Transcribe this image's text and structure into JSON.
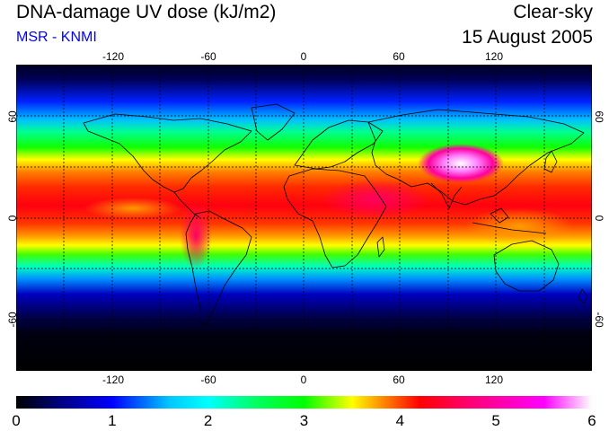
{
  "header": {
    "title": "DNA-damage UV dose (kJ/m2)",
    "source": "MSR - KNMI",
    "sky": "Clear-sky",
    "date": "15 August 2005"
  },
  "map": {
    "projection": "equirectangular",
    "lon_range": [
      -180,
      180
    ],
    "lat_range": [
      -90,
      90
    ],
    "lon_tick_labels": [
      "-120",
      "-60",
      "0",
      "60",
      "120"
    ],
    "lat_tick_labels_left": [
      "60",
      "0",
      "-60"
    ],
    "lat_tick_labels_right": [
      "60",
      "0",
      "-60"
    ],
    "gridlines": "dotted every 30 degrees",
    "coastlines": true,
    "field_description_note_excluded": true
  },
  "colorbar": {
    "labels": [
      "0",
      "1",
      "2",
      "3",
      "4",
      "5",
      "6"
    ],
    "range": [
      0,
      6
    ],
    "stops": [
      {
        "value": 0.0,
        "color": "#000000"
      },
      {
        "value": 0.5,
        "color": "#00008b"
      },
      {
        "value": 1.0,
        "color": "#0000ff"
      },
      {
        "value": 1.6,
        "color": "#00c8ff"
      },
      {
        "value": 2.0,
        "color": "#00ffff"
      },
      {
        "value": 2.5,
        "color": "#00ff60"
      },
      {
        "value": 3.0,
        "color": "#00ff00"
      },
      {
        "value": 3.5,
        "color": "#ffff00"
      },
      {
        "value": 3.8,
        "color": "#ff9000"
      },
      {
        "value": 4.2,
        "color": "#ff0000"
      },
      {
        "value": 4.8,
        "color": "#ff0080"
      },
      {
        "value": 5.5,
        "color": "#ff00ff"
      },
      {
        "value": 6.0,
        "color": "#ffffff"
      }
    ]
  }
}
